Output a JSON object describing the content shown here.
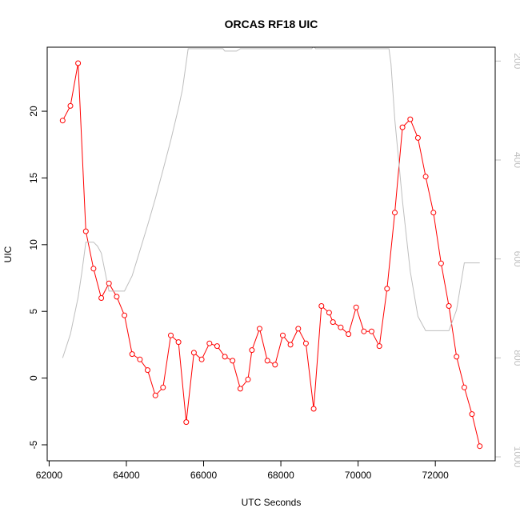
{
  "chart_data": {
    "type": "line",
    "title": "ORCAS RF18 UIC",
    "xlabel": "UTC Seconds",
    "ylabel": "UIC",
    "xlim": [
      61950,
      73550
    ],
    "ylim": [
      -6.2,
      24.8
    ],
    "x_ticks": [
      62000,
      64000,
      66000,
      68000,
      70000,
      72000
    ],
    "x_tick_labels": [
      "62000",
      "64000",
      "66000",
      "68000",
      "70000",
      "72000"
    ],
    "y_ticks": [
      -5,
      0,
      5,
      10,
      15,
      20
    ],
    "y_tick_labels": [
      "-5",
      "0",
      "5",
      "10",
      "15",
      "20"
    ],
    "y2_lim": [
      1008,
      172
    ],
    "y2_ticks": [
      200,
      400,
      600,
      800,
      1000
    ],
    "y2_tick_labels": [
      "200",
      "400",
      "600",
      "800",
      "1000"
    ],
    "grid": false,
    "series": [
      {
        "color": "#ff0000",
        "marker": "open-circle",
        "axis": "left",
        "x": [
          62350,
          62550,
          62750,
          62950,
          63150,
          63350,
          63550,
          63750,
          63950,
          64150,
          64350,
          64550,
          64750,
          64950,
          65150,
          65350,
          65550,
          65750,
          65950,
          66150,
          66350,
          66550,
          66750,
          66950,
          67150,
          67250,
          67450,
          67650,
          67850,
          68050,
          68250,
          68450,
          68650,
          68850,
          69050,
          69250,
          69350,
          69550,
          69750,
          69950,
          70150,
          70350,
          70550,
          70750,
          70950,
          71150,
          71350,
          71550,
          71750,
          71950,
          72150,
          72350,
          72550,
          72750,
          72950,
          73150
        ],
        "y": [
          19.3,
          20.4,
          23.6,
          11.0,
          8.2,
          6.0,
          7.1,
          6.1,
          4.7,
          1.8,
          1.4,
          0.6,
          -1.3,
          -0.7,
          3.2,
          2.7,
          -3.3,
          1.9,
          1.4,
          2.6,
          2.4,
          1.6,
          1.3,
          -0.8,
          -0.1,
          2.1,
          3.7,
          1.3,
          1.0,
          3.2,
          2.5,
          3.7,
          2.6,
          -2.3,
          5.4,
          4.9,
          4.2,
          3.8,
          3.3,
          5.3,
          3.5,
          3.5,
          2.4,
          6.7,
          12.4,
          18.8,
          19.4,
          18.0,
          15.1,
          12.4,
          8.6,
          5.4,
          1.6,
          -0.7,
          -2.7,
          -5.1
        ]
      },
      {
        "color": "#bebebe",
        "marker": "none",
        "axis": "right",
        "x": [
          62350,
          62550,
          62750,
          62850,
          62950,
          63050,
          63150,
          63250,
          63350,
          63550,
          63750,
          63950,
          64150,
          64350,
          64550,
          64750,
          64950,
          65150,
          65350,
          65450,
          65600,
          66000,
          66500,
          66550,
          66750,
          66850,
          66950,
          68800,
          68850,
          68900,
          70800,
          70850,
          70950,
          71150,
          71350,
          71550,
          71750,
          72150,
          72350,
          72550,
          72750,
          72950,
          73150
        ],
        "y": [
          800,
          752,
          678,
          626,
          566,
          566,
          566,
          574,
          588,
          665,
          665,
          665,
          634,
          583,
          532,
          478,
          420,
          360,
          295,
          258,
          175,
          175,
          175,
          180,
          180,
          180,
          175,
          175,
          170,
          175,
          175,
          205,
          318,
          483,
          625,
          716,
          745,
          745,
          745,
          703,
          608,
          608,
          608
        ]
      }
    ]
  }
}
